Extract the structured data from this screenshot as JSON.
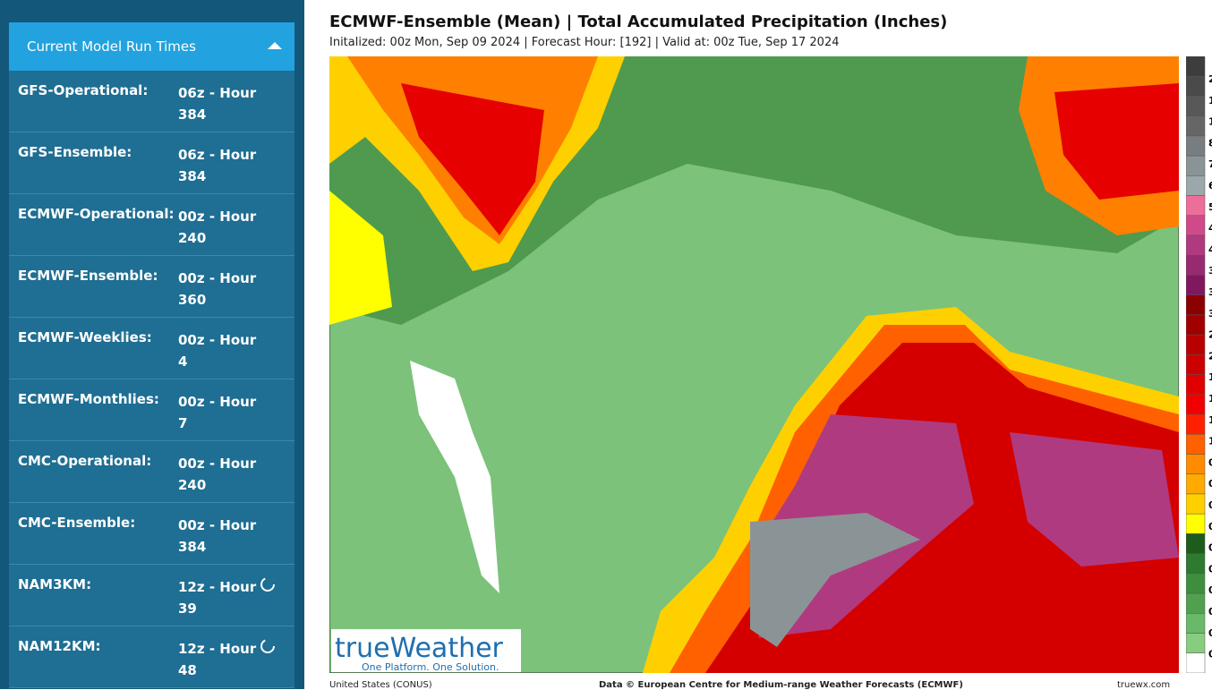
{
  "sidebar": {
    "header": "Current Model Run Times",
    "rows": [
      {
        "name": "GFS-Operational:",
        "value": "06z - Hour 384"
      },
      {
        "name": "GFS-Ensemble:",
        "value": "06z - Hour 384"
      },
      {
        "name": "ECMWF-Operational:",
        "value": "00z - Hour 240"
      },
      {
        "name": "ECMWF-Ensemble:",
        "value": "00z - Hour 360"
      },
      {
        "name": "ECMWF-Weeklies:",
        "value": "00z - Hour 4"
      },
      {
        "name": "ECMWF-Monthlies:",
        "value": "00z - Hour 7"
      },
      {
        "name": "CMC-Operational:",
        "value": "00z - Hour 240"
      },
      {
        "name": "CMC-Ensemble:",
        "value": "00z - Hour 384"
      },
      {
        "name": "NAM3KM:",
        "value": "12z - Hour 39"
      },
      {
        "name": "NAM12KM:",
        "value": "12z - Hour 48"
      }
    ]
  },
  "map": {
    "title": "ECMWF-Ensemble (Mean) | Total Accumulated Precipitation (Inches)",
    "subtitle": "Initalized: 00z Mon, Sep 09 2024 | Forecast Hour: [192] | Valid at: 00z Tue, Sep 17 2024",
    "logo": "trueWeather",
    "tagline": "One Platform. One Solution.",
    "footer_left": "United States (CONUS)",
    "footer_center": "Data © European Centre for Medium-range Weather Forecasts (ECMWF)",
    "footer_right": "truewx.com",
    "colorbar_labels": [
      "2",
      "1",
      "1",
      "8",
      "7",
      "6",
      "5",
      "4",
      "4",
      "3",
      "3",
      "3",
      "2",
      "2",
      "1",
      "1",
      "1",
      "1",
      "0",
      "0",
      "0",
      "0",
      "0",
      "0",
      "0",
      "0",
      "0",
      "0"
    ]
  }
}
